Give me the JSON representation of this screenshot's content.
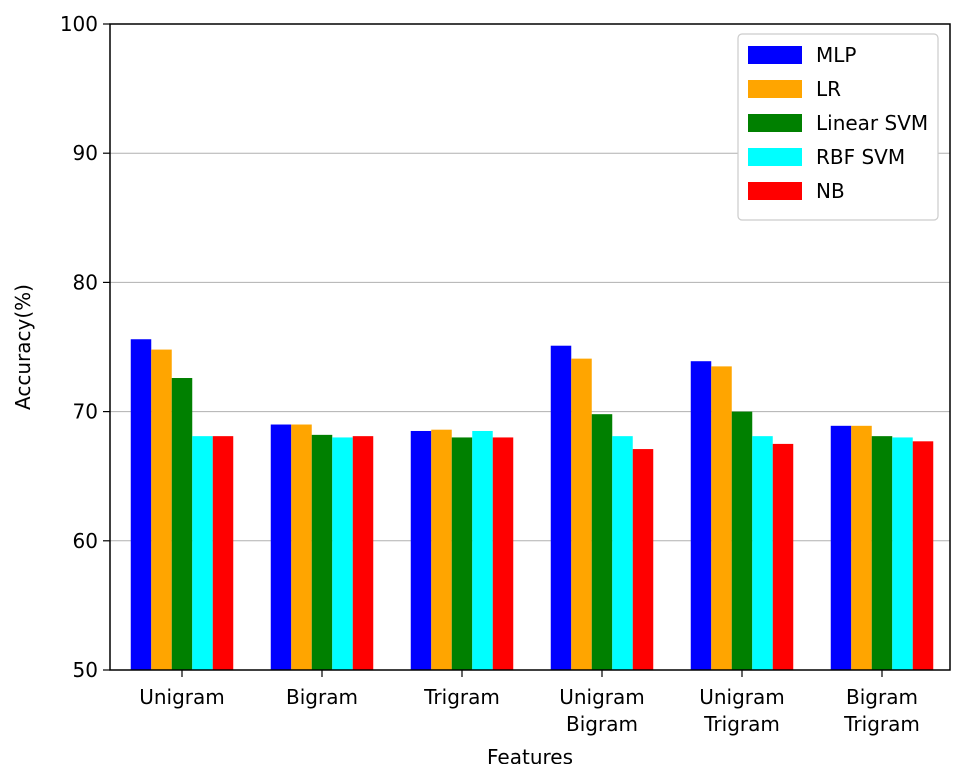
{
  "chart_data": {
    "type": "bar",
    "title": "",
    "xlabel": "Features",
    "ylabel": "Accuracy(%)",
    "ylim": [
      50,
      100
    ],
    "yticks": [
      50,
      60,
      70,
      80,
      90,
      100
    ],
    "grid": "horizontal",
    "legend_position": "top-right",
    "categories": [
      [
        "Unigram"
      ],
      [
        "Bigram"
      ],
      [
        "Trigram"
      ],
      [
        "Unigram",
        "Bigram"
      ],
      [
        "Unigram",
        "Trigram"
      ],
      [
        "Bigram",
        "Trigram"
      ]
    ],
    "series": [
      {
        "name": "MLP",
        "color": "#0000ff",
        "values": [
          75.6,
          69.0,
          68.5,
          75.1,
          73.9,
          68.9
        ]
      },
      {
        "name": "LR",
        "color": "#ffa500",
        "values": [
          74.8,
          69.0,
          68.6,
          74.1,
          73.5,
          68.9
        ]
      },
      {
        "name": "Linear SVM",
        "color": "#008000",
        "values": [
          72.6,
          68.2,
          68.0,
          69.8,
          70.0,
          68.1
        ]
      },
      {
        "name": "RBF SVM",
        "color": "#00ffff",
        "values": [
          68.1,
          68.0,
          68.5,
          68.1,
          68.1,
          68.0
        ]
      },
      {
        "name": "NB",
        "color": "#ff0000",
        "values": [
          68.1,
          68.1,
          68.0,
          67.1,
          67.5,
          67.7
        ]
      }
    ]
  }
}
